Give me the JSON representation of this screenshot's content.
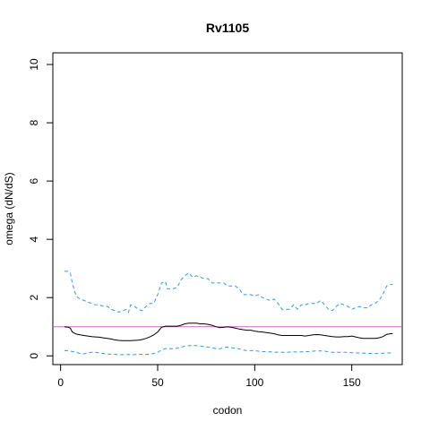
{
  "chart_data": {
    "type": "line",
    "title": "Rv1105",
    "xlabel": "codon",
    "ylabel": "omega (dN/dS)",
    "xlim": [
      -4,
      176
    ],
    "ylim": [
      -0.3,
      10.4
    ],
    "x_ticks": [
      0,
      50,
      100,
      150
    ],
    "y_ticks": [
      0,
      2,
      4,
      6,
      8,
      10
    ],
    "grid": false,
    "reference_line": {
      "y": 1,
      "color": "#cc66cc"
    },
    "colors": {
      "omega": "#000000",
      "ci": "#3399dd"
    },
    "series": [
      {
        "role": "upper-ci",
        "style": "dashed",
        "points": [
          [
            2,
            2.9
          ],
          [
            4,
            2.9
          ],
          [
            5,
            2.85
          ],
          [
            6,
            2.5
          ],
          [
            8,
            2.05
          ],
          [
            10,
            1.95
          ],
          [
            12,
            1.9
          ],
          [
            14,
            1.85
          ],
          [
            16,
            1.8
          ],
          [
            18,
            1.75
          ],
          [
            20,
            1.75
          ],
          [
            22,
            1.7
          ],
          [
            24,
            1.7
          ],
          [
            26,
            1.6
          ],
          [
            28,
            1.55
          ],
          [
            30,
            1.5
          ],
          [
            32,
            1.55
          ],
          [
            34,
            1.6
          ],
          [
            35,
            1.5
          ],
          [
            36,
            1.75
          ],
          [
            38,
            1.7
          ],
          [
            40,
            1.6
          ],
          [
            42,
            1.55
          ],
          [
            44,
            1.7
          ],
          [
            46,
            1.8
          ],
          [
            48,
            1.8
          ],
          [
            50,
            2.1
          ],
          [
            52,
            2.5
          ],
          [
            54,
            2.55
          ],
          [
            55,
            2.3
          ],
          [
            58,
            2.3
          ],
          [
            60,
            2.35
          ],
          [
            62,
            2.6
          ],
          [
            64,
            2.75
          ],
          [
            66,
            2.85
          ],
          [
            68,
            2.7
          ],
          [
            70,
            2.75
          ],
          [
            72,
            2.7
          ],
          [
            74,
            2.65
          ],
          [
            76,
            2.65
          ],
          [
            78,
            2.5
          ],
          [
            80,
            2.5
          ],
          [
            82,
            2.5
          ],
          [
            84,
            2.5
          ],
          [
            86,
            2.4
          ],
          [
            88,
            2.4
          ],
          [
            90,
            2.4
          ],
          [
            92,
            2.3
          ],
          [
            94,
            2.1
          ],
          [
            96,
            2.1
          ],
          [
            98,
            2.1
          ],
          [
            100,
            2.05
          ],
          [
            102,
            2.1
          ],
          [
            104,
            2.0
          ],
          [
            106,
            1.95
          ],
          [
            108,
            1.9
          ],
          [
            110,
            1.95
          ],
          [
            112,
            1.8
          ],
          [
            114,
            1.6
          ],
          [
            116,
            1.6
          ],
          [
            118,
            1.6
          ],
          [
            120,
            1.75
          ],
          [
            122,
            1.6
          ],
          [
            124,
            1.75
          ],
          [
            126,
            1.75
          ],
          [
            128,
            1.8
          ],
          [
            130,
            1.8
          ],
          [
            132,
            1.8
          ],
          [
            134,
            1.9
          ],
          [
            136,
            1.75
          ],
          [
            138,
            1.6
          ],
          [
            140,
            1.55
          ],
          [
            142,
            1.7
          ],
          [
            144,
            1.8
          ],
          [
            146,
            1.75
          ],
          [
            148,
            1.7
          ],
          [
            150,
            1.6
          ],
          [
            152,
            1.65
          ],
          [
            154,
            1.7
          ],
          [
            156,
            1.65
          ],
          [
            158,
            1.65
          ],
          [
            160,
            1.75
          ],
          [
            162,
            1.8
          ],
          [
            164,
            1.9
          ],
          [
            166,
            2.1
          ],
          [
            168,
            2.4
          ],
          [
            170,
            2.45
          ],
          [
            171,
            2.45
          ]
        ]
      },
      {
        "role": "omega",
        "style": "solid",
        "points": [
          [
            2,
            1.0
          ],
          [
            4,
            0.98
          ],
          [
            5,
            0.95
          ],
          [
            6,
            0.82
          ],
          [
            8,
            0.75
          ],
          [
            10,
            0.72
          ],
          [
            12,
            0.7
          ],
          [
            14,
            0.68
          ],
          [
            16,
            0.66
          ],
          [
            18,
            0.65
          ],
          [
            20,
            0.64
          ],
          [
            22,
            0.62
          ],
          [
            24,
            0.6
          ],
          [
            26,
            0.58
          ],
          [
            28,
            0.55
          ],
          [
            30,
            0.53
          ],
          [
            32,
            0.52
          ],
          [
            34,
            0.52
          ],
          [
            36,
            0.52
          ],
          [
            38,
            0.53
          ],
          [
            40,
            0.54
          ],
          [
            42,
            0.56
          ],
          [
            44,
            0.6
          ],
          [
            46,
            0.65
          ],
          [
            48,
            0.72
          ],
          [
            50,
            0.82
          ],
          [
            52,
            0.98
          ],
          [
            54,
            1.02
          ],
          [
            56,
            1.02
          ],
          [
            58,
            1.02
          ],
          [
            60,
            1.02
          ],
          [
            62,
            1.05
          ],
          [
            64,
            1.1
          ],
          [
            66,
            1.12
          ],
          [
            68,
            1.12
          ],
          [
            70,
            1.12
          ],
          [
            72,
            1.1
          ],
          [
            74,
            1.1
          ],
          [
            76,
            1.08
          ],
          [
            78,
            1.05
          ],
          [
            80,
            1.0
          ],
          [
            82,
            0.97
          ],
          [
            84,
            0.98
          ],
          [
            86,
            1.0
          ],
          [
            88,
            0.98
          ],
          [
            90,
            0.95
          ],
          [
            92,
            0.92
          ],
          [
            94,
            0.9
          ],
          [
            96,
            0.88
          ],
          [
            98,
            0.88
          ],
          [
            100,
            0.85
          ],
          [
            102,
            0.83
          ],
          [
            104,
            0.82
          ],
          [
            106,
            0.8
          ],
          [
            108,
            0.78
          ],
          [
            110,
            0.76
          ],
          [
            112,
            0.72
          ],
          [
            114,
            0.7
          ],
          [
            116,
            0.7
          ],
          [
            118,
            0.7
          ],
          [
            120,
            0.7
          ],
          [
            122,
            0.7
          ],
          [
            124,
            0.7
          ],
          [
            126,
            0.68
          ],
          [
            128,
            0.7
          ],
          [
            130,
            0.72
          ],
          [
            132,
            0.73
          ],
          [
            134,
            0.72
          ],
          [
            136,
            0.7
          ],
          [
            138,
            0.68
          ],
          [
            140,
            0.66
          ],
          [
            142,
            0.65
          ],
          [
            144,
            0.65
          ],
          [
            146,
            0.66
          ],
          [
            148,
            0.66
          ],
          [
            150,
            0.68
          ],
          [
            152,
            0.65
          ],
          [
            154,
            0.62
          ],
          [
            156,
            0.6
          ],
          [
            158,
            0.6
          ],
          [
            160,
            0.6
          ],
          [
            162,
            0.6
          ],
          [
            164,
            0.62
          ],
          [
            166,
            0.66
          ],
          [
            168,
            0.74
          ],
          [
            170,
            0.76
          ],
          [
            171,
            0.76
          ]
        ]
      },
      {
        "role": "lower-ci",
        "style": "dashed",
        "points": [
          [
            2,
            0.18
          ],
          [
            4,
            0.18
          ],
          [
            6,
            0.15
          ],
          [
            8,
            0.12
          ],
          [
            10,
            0.08
          ],
          [
            12,
            0.07
          ],
          [
            14,
            0.1
          ],
          [
            16,
            0.12
          ],
          [
            18,
            0.12
          ],
          [
            20,
            0.1
          ],
          [
            22,
            0.08
          ],
          [
            24,
            0.06
          ],
          [
            26,
            0.06
          ],
          [
            28,
            0.05
          ],
          [
            30,
            0.04
          ],
          [
            32,
            0.04
          ],
          [
            34,
            0.05
          ],
          [
            36,
            0.04
          ],
          [
            38,
            0.04
          ],
          [
            40,
            0.05
          ],
          [
            42,
            0.05
          ],
          [
            44,
            0.05
          ],
          [
            46,
            0.06
          ],
          [
            48,
            0.08
          ],
          [
            50,
            0.12
          ],
          [
            52,
            0.2
          ],
          [
            54,
            0.25
          ],
          [
            56,
            0.25
          ],
          [
            58,
            0.24
          ],
          [
            60,
            0.26
          ],
          [
            62,
            0.3
          ],
          [
            64,
            0.33
          ],
          [
            66,
            0.35
          ],
          [
            68,
            0.36
          ],
          [
            70,
            0.35
          ],
          [
            72,
            0.33
          ],
          [
            74,
            0.32
          ],
          [
            76,
            0.3
          ],
          [
            78,
            0.28
          ],
          [
            80,
            0.25
          ],
          [
            82,
            0.24
          ],
          [
            84,
            0.28
          ],
          [
            86,
            0.3
          ],
          [
            88,
            0.28
          ],
          [
            90,
            0.26
          ],
          [
            92,
            0.24
          ],
          [
            94,
            0.2
          ],
          [
            96,
            0.18
          ],
          [
            98,
            0.18
          ],
          [
            100,
            0.18
          ],
          [
            102,
            0.16
          ],
          [
            104,
            0.15
          ],
          [
            106,
            0.14
          ],
          [
            108,
            0.14
          ],
          [
            110,
            0.13
          ],
          [
            112,
            0.12
          ],
          [
            114,
            0.12
          ],
          [
            116,
            0.12
          ],
          [
            118,
            0.13
          ],
          [
            120,
            0.14
          ],
          [
            122,
            0.13
          ],
          [
            124,
            0.14
          ],
          [
            126,
            0.14
          ],
          [
            128,
            0.15
          ],
          [
            130,
            0.16
          ],
          [
            132,
            0.17
          ],
          [
            134,
            0.17
          ],
          [
            136,
            0.16
          ],
          [
            138,
            0.14
          ],
          [
            140,
            0.12
          ],
          [
            142,
            0.12
          ],
          [
            144,
            0.12
          ],
          [
            146,
            0.12
          ],
          [
            148,
            0.12
          ],
          [
            150,
            0.11
          ],
          [
            152,
            0.1
          ],
          [
            154,
            0.1
          ],
          [
            156,
            0.09
          ],
          [
            158,
            0.09
          ],
          [
            160,
            0.08
          ],
          [
            162,
            0.08
          ],
          [
            164,
            0.08
          ],
          [
            166,
            0.09
          ],
          [
            168,
            0.1
          ],
          [
            170,
            0.1
          ],
          [
            171,
            0.1
          ]
        ]
      }
    ]
  }
}
